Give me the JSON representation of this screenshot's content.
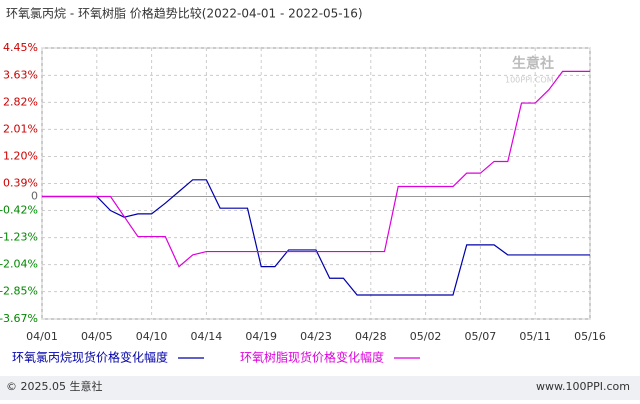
{
  "chart_data": {
    "type": "line",
    "title": "环氧氯丙烷 - 环氧树脂 价格趋势比较(2022-04-01 - 2022-05-16)",
    "watermark": "生意社",
    "watermark_sub": "100PPI.COM",
    "footer_left": "© 2025.05 生意社",
    "footer_right": "www.100PPI.com",
    "categories": [
      "04/01",
      null,
      null,
      null,
      "04/05",
      null,
      null,
      null,
      "04/10",
      null,
      null,
      null,
      "04/14",
      null,
      null,
      null,
      "04/19",
      null,
      null,
      null,
      "04/23",
      null,
      null,
      null,
      "04/28",
      null,
      null,
      null,
      "05/02",
      null,
      null,
      null,
      "05/07",
      null,
      null,
      null,
      "05/11",
      null,
      null,
      null,
      "05/16"
    ],
    "series": [
      {
        "name": "环氧氯丙烷现货价格变化幅度",
        "color": "#0000aa",
        "values": [
          0,
          0,
          0,
          0,
          0,
          -0.42,
          -0.62,
          -0.52,
          -0.52,
          -0.2,
          0.15,
          0.5,
          0.5,
          -0.35,
          -0.35,
          -0.35,
          -2.1,
          -2.1,
          -1.6,
          -1.6,
          -1.6,
          -2.45,
          -2.45,
          -2.95,
          -2.95,
          -2.95,
          -2.95,
          -2.95,
          -2.95,
          -2.95,
          -2.95,
          -1.45,
          -1.45,
          -1.45,
          -1.75,
          -1.75,
          -1.75,
          -1.75,
          -1.75,
          -1.75,
          -1.75
        ]
      },
      {
        "name": "环氧树脂现货价格变化幅度",
        "color": "#dd00dd",
        "values": [
          0,
          0,
          0,
          0,
          0,
          0,
          -0.6,
          -1.2,
          -1.2,
          -1.2,
          -2.1,
          -1.75,
          -1.65,
          -1.65,
          -1.65,
          -1.65,
          -1.65,
          -1.65,
          -1.65,
          -1.65,
          -1.65,
          -1.65,
          -1.65,
          -1.65,
          -1.65,
          -1.65,
          0.3,
          0.3,
          0.3,
          0.3,
          0.3,
          0.7,
          0.7,
          1.05,
          1.05,
          2.8,
          2.8,
          3.2,
          3.75,
          3.75,
          3.75
        ]
      }
    ],
    "ylim": [
      -3.67,
      4.45
    ],
    "yticks": [
      {
        "value": 4.45,
        "label": "4.45%"
      },
      {
        "value": 3.63,
        "label": "3.63%"
      },
      {
        "value": 2.82,
        "label": "2.82%"
      },
      {
        "value": 2.01,
        "label": "2.01%"
      },
      {
        "value": 1.2,
        "label": "1.20%"
      },
      {
        "value": 0.39,
        "label": "0.39%"
      },
      0,
      {
        "value": -0.42,
        "label": "-0.42%"
      },
      {
        "value": -1.23,
        "label": "-1.23%"
      },
      {
        "value": -2.04,
        "label": "-2.04%"
      },
      {
        "value": -2.85,
        "label": "-2.85%"
      },
      {
        "value": -3.67,
        "label": "-3.67%"
      }
    ],
    "grid": true
  }
}
